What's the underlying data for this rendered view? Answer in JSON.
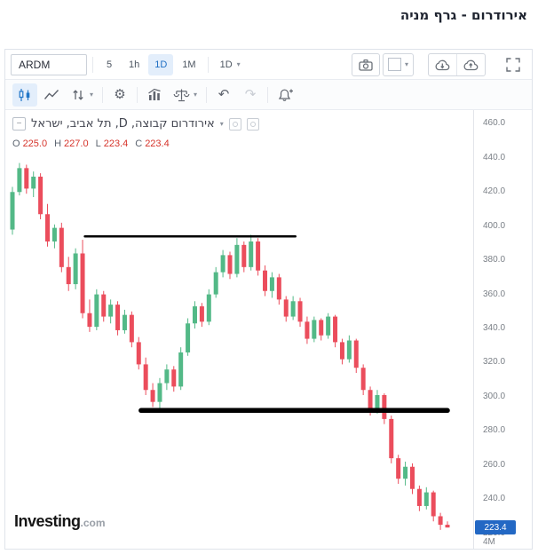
{
  "page": {
    "title": "אירודרום - גרף מניה"
  },
  "icons": {
    "caret_down": "▾",
    "minus": "−",
    "undo": "↶",
    "redo": "↷",
    "gear": "⚙"
  },
  "toolbar": {
    "symbol": "ARDM",
    "intervals": [
      {
        "label": "5"
      },
      {
        "label": "1h"
      },
      {
        "label": "1D"
      },
      {
        "label": "1M"
      }
    ],
    "active_interval": "1D",
    "interval_dropdown": "1D"
  },
  "legend": {
    "title": "אירודרום קבוצה, D, תל אביב, ישראל",
    "ohlc": [
      {
        "label": "O",
        "value": "225.0"
      },
      {
        "label": "H",
        "value": "227.0"
      },
      {
        "label": "L",
        "value": "223.4"
      },
      {
        "label": "C",
        "value": "223.4"
      }
    ]
  },
  "price_axis": {
    "tick_labels": [
      "460.0",
      "440.0",
      "420.0",
      "400.0",
      "380.0",
      "360.0",
      "340.0",
      "320.0",
      "300.0",
      "280.0",
      "260.0",
      "240.0",
      "220.0"
    ],
    "last_price_label": "223.4",
    "volume_label": "4M"
  },
  "logo": {
    "name": "Investing",
    "tld": ".com"
  },
  "colors": {
    "up": "#53b987",
    "down": "#eb4d5c",
    "badge_bg": "#2368c4",
    "drawing_line": "#000000",
    "active_blue": "#1f6fc4"
  },
  "chart_data": {
    "type": "candlestick",
    "title": "אירודרום קבוצה, D, תל אביב, ישראל",
    "interval": "1D",
    "last": {
      "o": 225.0,
      "h": 227.0,
      "l": 223.4,
      "c": 223.4
    },
    "ylim": [
      211,
      468
    ],
    "y_ticks": [
      220,
      240,
      260,
      280,
      300,
      320,
      340,
      360,
      380,
      400,
      420,
      440,
      460
    ],
    "grid": false,
    "candles": [
      [
        398,
        423,
        395,
        420
      ],
      [
        420,
        437,
        418,
        434
      ],
      [
        434,
        436,
        419,
        422
      ],
      [
        422,
        432,
        417,
        429
      ],
      [
        429,
        431,
        404,
        407
      ],
      [
        407,
        413,
        388,
        391
      ],
      [
        391,
        401,
        387,
        399
      ],
      [
        399,
        402,
        373,
        376
      ],
      [
        376,
        382,
        362,
        366
      ],
      [
        366,
        387,
        363,
        384
      ],
      [
        384,
        392,
        346,
        349
      ],
      [
        349,
        357,
        338,
        341
      ],
      [
        341,
        363,
        339,
        360
      ],
      [
        360,
        362,
        344,
        347
      ],
      [
        347,
        357,
        343,
        354
      ],
      [
        354,
        356,
        336,
        339
      ],
      [
        339,
        351,
        337,
        348
      ],
      [
        348,
        350,
        329,
        332
      ],
      [
        332,
        335,
        316,
        319
      ],
      [
        319,
        323,
        301,
        304
      ],
      [
        304,
        308,
        294,
        297
      ],
      [
        297,
        311,
        293,
        308
      ],
      [
        308,
        319,
        304,
        316
      ],
      [
        316,
        318,
        303,
        306
      ],
      [
        306,
        329,
        304,
        326
      ],
      [
        326,
        346,
        324,
        343
      ],
      [
        343,
        356,
        340,
        353
      ],
      [
        353,
        355,
        341,
        344
      ],
      [
        344,
        363,
        342,
        360
      ],
      [
        360,
        376,
        358,
        373
      ],
      [
        373,
        386,
        370,
        383
      ],
      [
        383,
        385,
        369,
        372
      ],
      [
        372,
        393,
        370,
        389
      ],
      [
        389,
        391,
        373,
        376
      ],
      [
        376,
        395,
        374,
        391
      ],
      [
        391,
        393,
        371,
        374
      ],
      [
        374,
        377,
        359,
        362
      ],
      [
        362,
        373,
        358,
        370
      ],
      [
        370,
        372,
        354,
        357
      ],
      [
        357,
        359,
        344,
        347
      ],
      [
        347,
        359,
        345,
        356
      ],
      [
        356,
        358,
        341,
        344
      ],
      [
        344,
        347,
        331,
        334
      ],
      [
        334,
        347,
        332,
        345
      ],
      [
        345,
        346,
        333,
        336
      ],
      [
        336,
        349,
        334,
        347
      ],
      [
        347,
        348,
        329,
        332
      ],
      [
        332,
        334,
        319,
        322
      ],
      [
        322,
        336,
        320,
        333
      ],
      [
        333,
        334,
        314,
        317
      ],
      [
        317,
        319,
        301,
        304
      ],
      [
        304,
        306,
        289,
        292
      ],
      [
        292,
        304,
        290,
        301
      ],
      [
        301,
        302,
        284,
        287
      ],
      [
        287,
        289,
        261,
        264
      ],
      [
        264,
        266,
        249,
        252
      ],
      [
        252,
        262,
        248,
        259
      ],
      [
        259,
        261,
        243,
        246
      ],
      [
        246,
        248,
        233,
        236
      ],
      [
        236,
        247,
        234,
        244
      ],
      [
        244,
        245,
        227,
        230
      ],
      [
        230,
        232,
        222,
        225
      ],
      [
        225,
        227,
        223.4,
        223.4
      ]
    ],
    "annotations": [
      {
        "type": "hline_segment",
        "name": "resistance-line",
        "price": 394,
        "x_start": 0.17,
        "x_end": 0.62,
        "width": 2.5,
        "color": "#000000"
      },
      {
        "type": "hline_segment",
        "name": "support-line",
        "price": 292,
        "x_start": 0.29,
        "x_end": 0.945,
        "width": 5.5,
        "color": "#000000"
      }
    ]
  }
}
